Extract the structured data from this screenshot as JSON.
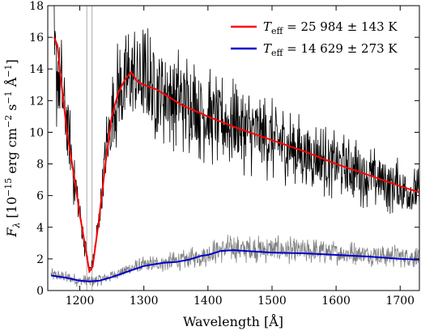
{
  "chart_data": {
    "type": "line",
    "title": "",
    "xlabel": "Wavelength [Å]",
    "ylabel": "F_λ [10^-15 erg cm^-2 s^-1 Å^-1]",
    "ylabel_parts": {
      "symbol": "F",
      "symbol_sub": "λ",
      "open": " [10",
      "exp1": "−15",
      "unit1": " erg cm",
      "exp2": "−2",
      "unit2": " s",
      "exp3": "−1",
      "unit3": " Å",
      "exp4": "−1",
      "close": "]"
    },
    "xlim": [
      1150,
      1730
    ],
    "ylim": [
      0,
      18
    ],
    "x_ticks": [
      1200,
      1300,
      1400,
      1500,
      1600,
      1700
    ],
    "x_tick_labels": [
      "1200",
      "1300",
      "1400",
      "1500",
      "1600",
      "1700"
    ],
    "y_ticks": [
      0,
      2,
      4,
      6,
      8,
      10,
      12,
      14,
      16,
      18
    ],
    "y_tick_labels": [
      "0",
      "2",
      "4",
      "6",
      "8",
      "10",
      "12",
      "14",
      "16",
      "18"
    ],
    "grid": false,
    "legend_position": "top-right",
    "colors": {
      "black": "#000000",
      "gray": "#808080",
      "red": "#ff0000",
      "blue": "#0000cc",
      "lightgray": "#bbbbbb"
    },
    "vlines": [
      1211,
      1219
    ],
    "series": [
      {
        "name": "T_eff = 25 984 ± 143 K",
        "legend_label": {
          "symbol": "T",
          "sub": "eff",
          "value": " = 25 984 ± 143 K"
        },
        "color": "#ff0000",
        "x": [
          1160,
          1165,
          1170,
          1175,
          1180,
          1190,
          1200,
          1210,
          1215,
          1220,
          1230,
          1240,
          1250,
          1260,
          1270,
          1280,
          1290,
          1300,
          1320,
          1340,
          1360,
          1400,
          1450,
          1500,
          1550,
          1600,
          1650,
          1700,
          1730
        ],
        "y": [
          16.0,
          15.5,
          13.5,
          11.8,
          10.0,
          7.5,
          4.8,
          2.4,
          1.2,
          1.5,
          4.5,
          8.0,
          11.0,
          12.5,
          13.3,
          13.8,
          13.2,
          13.0,
          12.7,
          12.2,
          11.7,
          11.0,
          10.2,
          9.5,
          8.8,
          8.0,
          7.3,
          6.6,
          6.2
        ]
      },
      {
        "name": "T_eff = 14 629 ± 273 K",
        "legend_label": {
          "symbol": "T",
          "sub": "eff",
          "value": " = 14 629 ± 273 K"
        },
        "color": "#0000cc",
        "x": [
          1155,
          1180,
          1200,
          1215,
          1230,
          1250,
          1275,
          1300,
          1330,
          1350,
          1370,
          1390,
          1400,
          1420,
          1440,
          1460,
          1500,
          1550,
          1600,
          1650,
          1700,
          1730
        ],
        "y": [
          0.95,
          0.8,
          0.62,
          0.58,
          0.62,
          0.85,
          1.2,
          1.55,
          1.75,
          1.8,
          1.95,
          2.2,
          2.25,
          2.5,
          2.55,
          2.5,
          2.4,
          2.35,
          2.25,
          2.15,
          2.0,
          1.95
        ]
      },
      {
        "name": "",
        "role": "observed spectrum (hot)",
        "color": "#000000",
        "x": [
          1160,
          1170,
          1180,
          1190,
          1200,
          1210,
          1215,
          1220,
          1230,
          1240,
          1250,
          1260,
          1270,
          1280,
          1290,
          1300,
          1320,
          1340,
          1360,
          1380,
          1400,
          1450,
          1500,
          1550,
          1600,
          1650,
          1700,
          1730
        ],
        "y": [
          14.5,
          13.0,
          10.5,
          7.5,
          4.8,
          2.4,
          1.3,
          1.6,
          4.5,
          8.5,
          11.0,
          12.5,
          13.0,
          13.5,
          13.5,
          13.2,
          12.8,
          12.4,
          12.0,
          11.6,
          11.0,
          10.3,
          9.5,
          8.7,
          8.0,
          7.2,
          6.5,
          6.0
        ]
      },
      {
        "name": "",
        "role": "observed spectrum (cool)",
        "color": "#808080",
        "x": [
          1155,
          1170,
          1190,
          1200,
          1210,
          1220,
          1240,
          1260,
          1280,
          1300,
          1320,
          1340,
          1360,
          1380,
          1400,
          1420,
          1440,
          1460,
          1500,
          1550,
          1600,
          1650,
          1700,
          1730
        ],
        "y": [
          1.0,
          0.9,
          0.7,
          0.6,
          0.6,
          0.6,
          0.8,
          1.1,
          1.4,
          1.6,
          1.7,
          1.8,
          1.9,
          2.1,
          2.3,
          2.6,
          2.7,
          2.6,
          2.6,
          2.5,
          2.4,
          2.3,
          2.2,
          2.1
        ]
      }
    ]
  }
}
